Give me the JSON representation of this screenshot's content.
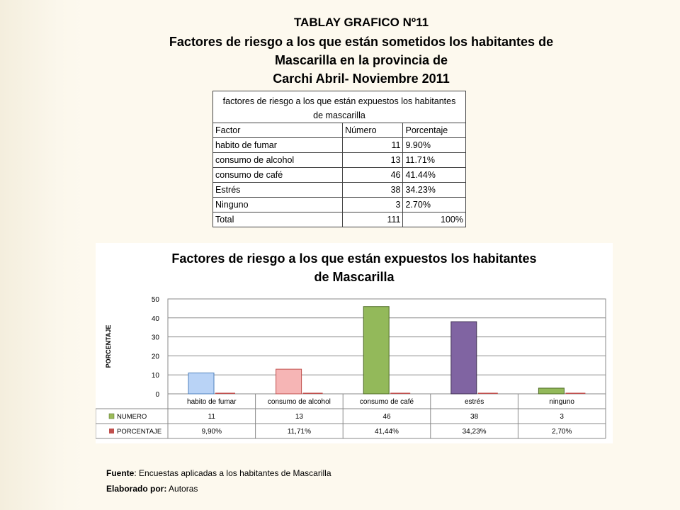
{
  "header": {
    "line1": "TABLAY GRAFICO Nº11",
    "line2": "Factores de riesgo a los que están sometidos los habitantes de",
    "line3": "Mascarilla en la provincia de",
    "line4": "Carchi Abril- Noviembre 2011"
  },
  "table": {
    "caption": "factores de riesgo a los que están expuestos los habitantes de mascarilla",
    "headers": [
      "Factor",
      "Número",
      "Porcentaje"
    ],
    "rows": [
      [
        "habito de fumar",
        "11",
        "9.90%"
      ],
      [
        "consumo de alcohol",
        "13",
        "11.71%"
      ],
      [
        "consumo de café",
        "46",
        "41.44%"
      ],
      [
        "Estrés",
        "38",
        "34.23%"
      ],
      [
        "Ninguno",
        "3",
        "2.70%"
      ],
      [
        "Total",
        "111",
        "100%"
      ]
    ]
  },
  "chart_data": {
    "type": "bar",
    "title": "Factores de riesgo a los que están expuestos los habitantes de Mascarilla",
    "title_lines": [
      "Factores de riesgo a los que están expuestos los habitantes",
      "de Mascarilla"
    ],
    "ylabel": "PORCENTAJE",
    "ylim": [
      0,
      50
    ],
    "yticks": [
      0,
      10,
      20,
      30,
      40,
      50
    ],
    "grid": true,
    "categories": [
      "habito de fumar",
      "consumo de alcohol",
      "consumo de café",
      "estrés",
      "ninguno"
    ],
    "bar_colors": [
      "#b9d3f6",
      "#f6b5b5",
      "#93b95a",
      "#8064a2",
      "#93b95a"
    ],
    "bar_borders": [
      "#4f81bd",
      "#c0504d",
      "#4e6a26",
      "#3f3151",
      "#4e6a26"
    ],
    "series": [
      {
        "name": "NUMERO",
        "values": [
          11,
          13,
          46,
          38,
          3
        ],
        "labels": [
          "11",
          "13",
          "46",
          "38",
          "3"
        ],
        "color": "#9bbb59"
      },
      {
        "name": "PORCENTAJE",
        "values": [
          9.9,
          11.71,
          41.44,
          34.23,
          2.7
        ],
        "labels": [
          "9,90%",
          "11,71%",
          "41,44%",
          "34,23%",
          "2,70%"
        ],
        "color": "#c0504d"
      }
    ]
  },
  "footer": {
    "source_label": "Fuente",
    "source_text": ": Encuestas aplicadas a los habitantes de Mascarilla",
    "author_label": "Elaborado por:",
    "author_text": " Autoras"
  }
}
